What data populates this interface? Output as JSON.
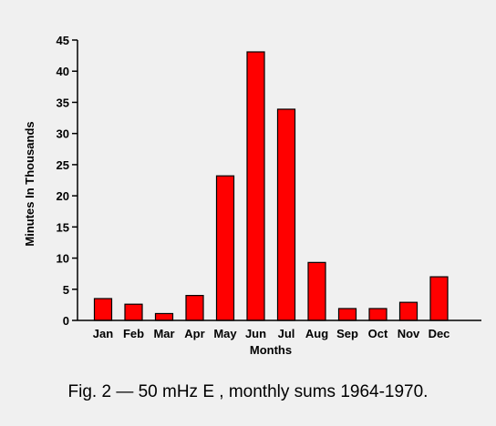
{
  "chart_data": {
    "type": "bar",
    "categories": [
      "Jan",
      "Feb",
      "Mar",
      "Apr",
      "May",
      "Jun",
      "Jul",
      "Aug",
      "Sep",
      "Oct",
      "Nov",
      "Dec"
    ],
    "values": [
      3.5,
      2.6,
      1.1,
      4.0,
      23.2,
      43.1,
      33.9,
      9.3,
      1.9,
      1.9,
      2.9,
      7.0
    ],
    "xlabel": "Months",
    "ylabel": "Minutes In Thousands",
    "ylim": [
      0,
      45
    ],
    "yticks": [
      0,
      5,
      10,
      15,
      20,
      25,
      30,
      35,
      40,
      45
    ],
    "grid": false,
    "bar_color": "#ff0000",
    "background": "#f0f0f0"
  },
  "caption": "Fig. 2 — 50 mHz E , monthly sums 1964-1970."
}
